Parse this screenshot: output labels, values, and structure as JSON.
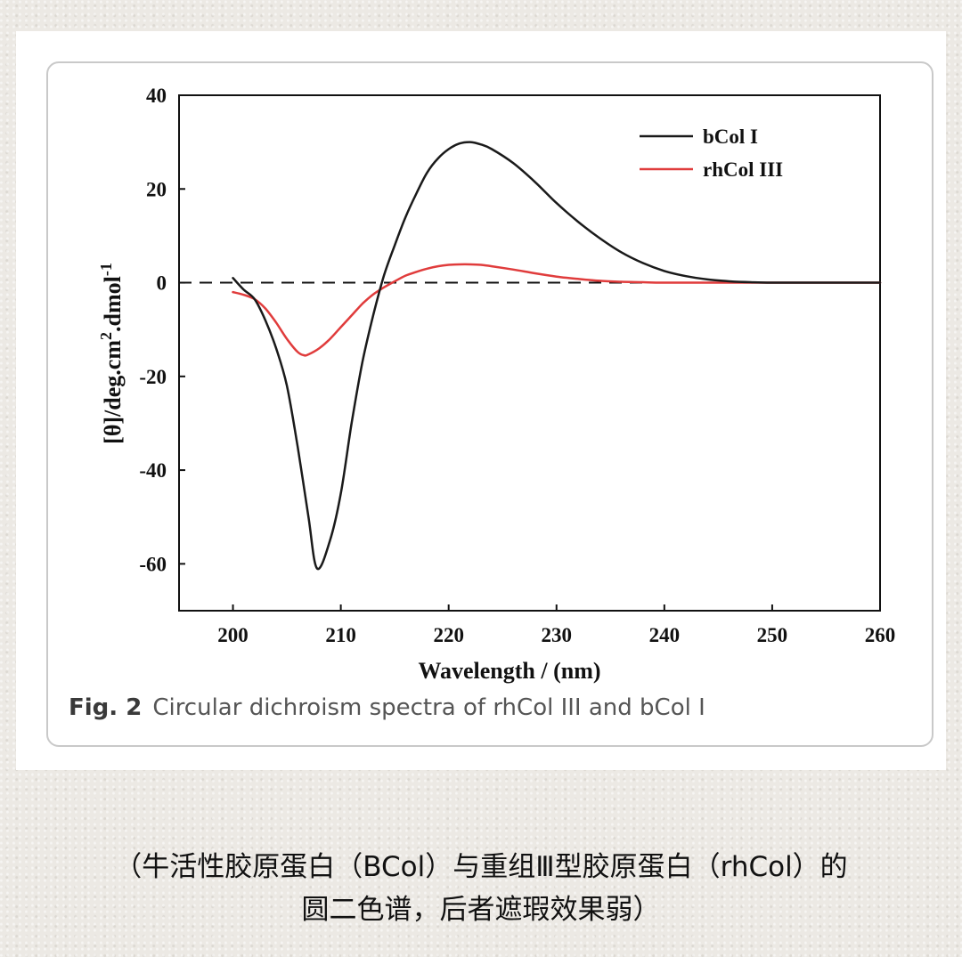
{
  "figure_caption": {
    "label": "Fig. 2",
    "text": "Circular dichroism spectra of rhCol III and bCol I"
  },
  "chinese_caption": {
    "line1": "（牛活性胶原蛋白（BCol）与重组Ⅲ型胶原蛋白（rhCol）的",
    "line2": "圆二色谱，后者遮瑕效果弱）"
  },
  "colors": {
    "bcol": "#1a1a1a",
    "rhcol": "#e03c3c",
    "axis": "#111111"
  },
  "chart_data": {
    "type": "line",
    "xlabel": "Wavelength / (nm)",
    "ylabel": "[θ]/deg.cm2.dmol-1",
    "ylabel_parts": {
      "base": "[θ]/deg.cm",
      "sup1": "2",
      "mid": ".dmol",
      "sup2": "-1"
    },
    "xlim": [
      195,
      260
    ],
    "ylim": [
      -70,
      40
    ],
    "xticks": [
      200,
      210,
      220,
      230,
      240,
      250,
      260
    ],
    "yticks": [
      40,
      20,
      0,
      -20,
      -40,
      -60
    ],
    "legend": "top-right",
    "reference_line": {
      "y": 0,
      "style": "dashed"
    },
    "series": [
      {
        "name": "bCol I",
        "color": "#1a1a1a",
        "x": [
          200,
          201,
          202,
          203,
          204,
          205,
          206,
          207,
          207.8,
          209,
          210,
          211,
          212,
          213,
          214,
          215,
          216,
          217,
          218,
          219,
          220,
          221,
          222,
          223,
          224,
          226,
          228,
          230,
          232,
          234,
          236,
          238,
          240,
          242,
          244,
          246,
          248,
          250,
          255,
          260
        ],
        "y": [
          1,
          -1.5,
          -3.5,
          -8,
          -14,
          -22,
          -35,
          -50,
          -61,
          -55,
          -45,
          -30,
          -17,
          -7,
          1.5,
          8,
          14,
          19,
          23.5,
          26.5,
          28.5,
          29.7,
          30,
          29.5,
          28.5,
          25.5,
          21.5,
          17,
          13,
          9.5,
          6.5,
          4.2,
          2.5,
          1.4,
          0.7,
          0.3,
          0.1,
          0,
          0,
          0
        ]
      },
      {
        "name": "rhCol III",
        "color": "#e03c3c",
        "x": [
          200,
          201,
          202,
          203,
          204,
          205,
          206,
          206.6,
          207,
          208,
          209,
          210,
          211,
          212,
          213,
          214,
          215,
          216,
          217,
          218,
          219,
          220,
          221,
          222,
          223,
          224,
          226,
          228,
          230,
          232,
          234,
          236,
          238,
          240,
          245,
          250,
          255,
          260
        ],
        "y": [
          -2,
          -2.6,
          -3.5,
          -5.5,
          -8.5,
          -12,
          -14.8,
          -15.5,
          -15.3,
          -14,
          -12,
          -9.5,
          -7,
          -4.5,
          -2.5,
          -1,
          0.3,
          1.5,
          2.3,
          3,
          3.5,
          3.8,
          3.9,
          3.9,
          3.8,
          3.5,
          2.8,
          2,
          1.3,
          0.8,
          0.4,
          0.2,
          0.1,
          0,
          0,
          0,
          0,
          0
        ]
      }
    ]
  }
}
